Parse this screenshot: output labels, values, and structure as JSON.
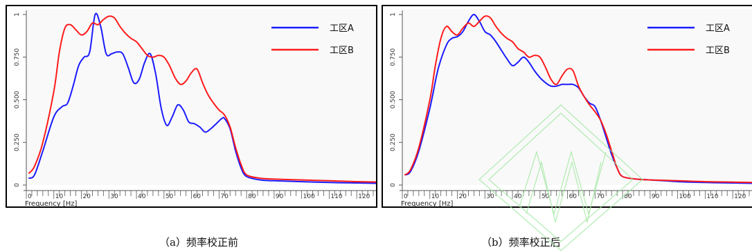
{
  "chart_data": [
    {
      "type": "line",
      "caption": "（a）频率校正前",
      "xlabel": "Frequency [Hz]",
      "ylabel": "",
      "xlim": [
        0,
        127
      ],
      "ylim": [
        0,
        1
      ],
      "xticks": [
        0,
        10,
        20,
        30,
        40,
        50,
        60,
        70,
        80,
        90,
        100,
        110,
        120
      ],
      "yticks": [
        0,
        0.25,
        0.5,
        0.75,
        1
      ],
      "ytick_labels": [
        "0",
        "0.250",
        "0.500",
        "0.750",
        "1"
      ],
      "grid": false,
      "legend": "top-right",
      "series": [
        {
          "name": "工区A",
          "color": "#1a1aff",
          "x": [
            1,
            3,
            6,
            10,
            13,
            15,
            17,
            19,
            21,
            23,
            25,
            27,
            29,
            31,
            33,
            35,
            37,
            39,
            41,
            43,
            45,
            47,
            49,
            51,
            53,
            55,
            57,
            59,
            61,
            63,
            65,
            67,
            69,
            71,
            72,
            74,
            76,
            78,
            80,
            85,
            90,
            100,
            110,
            120,
            127
          ],
          "y": [
            0.04,
            0.06,
            0.2,
            0.4,
            0.46,
            0.48,
            0.58,
            0.7,
            0.75,
            0.78,
            1.0,
            0.93,
            0.77,
            0.77,
            0.78,
            0.77,
            0.69,
            0.6,
            0.62,
            0.72,
            0.77,
            0.65,
            0.45,
            0.35,
            0.4,
            0.47,
            0.44,
            0.37,
            0.36,
            0.34,
            0.31,
            0.33,
            0.36,
            0.39,
            0.39,
            0.33,
            0.2,
            0.1,
            0.05,
            0.03,
            0.025,
            0.02,
            0.015,
            0.012,
            0.01
          ]
        },
        {
          "name": "工区B",
          "color": "#ff1a1a",
          "x": [
            1,
            3,
            6,
            10,
            12,
            14,
            16,
            18,
            20,
            22,
            24,
            26,
            28,
            30,
            32,
            34,
            36,
            38,
            40,
            42,
            44,
            46,
            48,
            50,
            52,
            54,
            56,
            58,
            60,
            62,
            64,
            66,
            68,
            70,
            72,
            74,
            76,
            78,
            80,
            85,
            90,
            100,
            110,
            120,
            127
          ],
          "y": [
            0.07,
            0.11,
            0.25,
            0.55,
            0.78,
            0.92,
            0.94,
            0.91,
            0.88,
            0.9,
            0.95,
            0.94,
            0.97,
            0.99,
            0.98,
            0.93,
            0.89,
            0.86,
            0.84,
            0.8,
            0.76,
            0.75,
            0.76,
            0.75,
            0.7,
            0.63,
            0.59,
            0.61,
            0.66,
            0.68,
            0.6,
            0.53,
            0.48,
            0.44,
            0.41,
            0.34,
            0.22,
            0.12,
            0.06,
            0.04,
            0.035,
            0.03,
            0.025,
            0.02,
            0.018
          ]
        }
      ]
    },
    {
      "type": "line",
      "caption": "（b）频率校正后",
      "xlabel": "Frequency [Hz]",
      "ylabel": "",
      "xlim": [
        0,
        127
      ],
      "ylim": [
        0,
        1
      ],
      "xticks": [
        0,
        10,
        20,
        30,
        40,
        50,
        60,
        70,
        80,
        90,
        100,
        110,
        120
      ],
      "yticks": [
        0,
        0.25,
        0.5,
        0.75,
        1
      ],
      "ytick_labels": [
        "0",
        "0.250",
        "0.500",
        "0.750",
        "1"
      ],
      "grid": false,
      "legend": "top-right",
      "series": [
        {
          "name": "工区A",
          "color": "#1a1aff",
          "x": [
            1,
            3,
            6,
            10,
            13,
            16,
            18,
            20,
            22,
            24,
            26,
            28,
            30,
            32,
            34,
            36,
            38,
            40,
            42,
            44,
            46,
            48,
            50,
            52,
            54,
            56,
            58,
            60,
            62,
            64,
            66,
            68,
            70,
            72,
            74,
            76,
            78,
            80,
            85,
            90,
            100,
            110,
            120,
            127
          ],
          "y": [
            0.06,
            0.08,
            0.2,
            0.45,
            0.68,
            0.82,
            0.86,
            0.87,
            0.9,
            0.96,
            1.0,
            0.96,
            0.9,
            0.88,
            0.84,
            0.79,
            0.74,
            0.7,
            0.72,
            0.75,
            0.72,
            0.67,
            0.63,
            0.6,
            0.58,
            0.58,
            0.59,
            0.59,
            0.59,
            0.57,
            0.52,
            0.48,
            0.46,
            0.38,
            0.28,
            0.18,
            0.1,
            0.05,
            0.035,
            0.03,
            0.02,
            0.015,
            0.012,
            0.01
          ]
        },
        {
          "name": "工区B",
          "color": "#ff1a1a",
          "x": [
            1,
            3,
            6,
            10,
            12,
            14,
            16,
            18,
            20,
            22,
            24,
            26,
            28,
            30,
            32,
            34,
            36,
            38,
            40,
            42,
            44,
            46,
            48,
            50,
            52,
            54,
            56,
            58,
            60,
            62,
            64,
            66,
            68,
            70,
            72,
            74,
            76,
            78,
            80,
            85,
            90,
            100,
            110,
            120,
            127
          ],
          "y": [
            0.06,
            0.09,
            0.22,
            0.5,
            0.7,
            0.86,
            0.93,
            0.9,
            0.88,
            0.92,
            0.95,
            0.93,
            0.96,
            0.99,
            0.98,
            0.93,
            0.89,
            0.86,
            0.84,
            0.8,
            0.78,
            0.75,
            0.76,
            0.75,
            0.69,
            0.62,
            0.59,
            0.64,
            0.68,
            0.67,
            0.58,
            0.52,
            0.47,
            0.43,
            0.38,
            0.3,
            0.2,
            0.1,
            0.05,
            0.035,
            0.03,
            0.025,
            0.02,
            0.017,
            0.015
          ]
        }
      ]
    }
  ]
}
